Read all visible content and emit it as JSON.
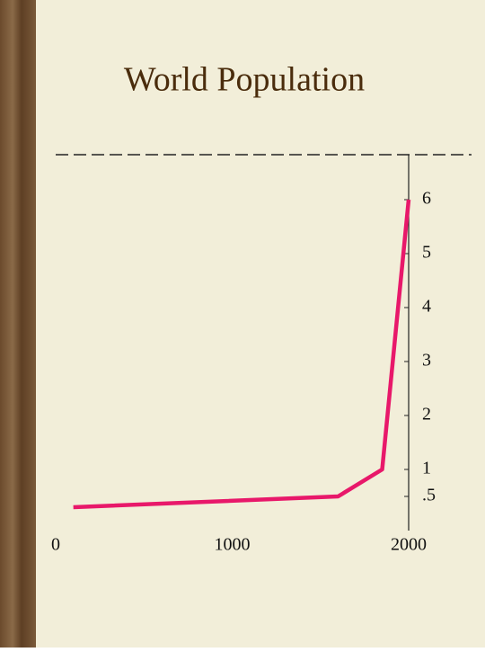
{
  "chart_data": {
    "type": "line",
    "title": "World Population",
    "x": [
      100,
      1600,
      1850,
      2000
    ],
    "values": [
      0.3,
      0.5,
      1,
      6
    ],
    "color": "#e8186a",
    "xlim": [
      0,
      2000
    ],
    "xticks": [
      0,
      1000,
      2000
    ],
    "ylim": [
      0,
      6.5
    ],
    "yticks": [
      {
        "value": 0.5,
        "label": ".5"
      },
      1,
      2,
      3,
      4,
      5,
      6
    ]
  }
}
